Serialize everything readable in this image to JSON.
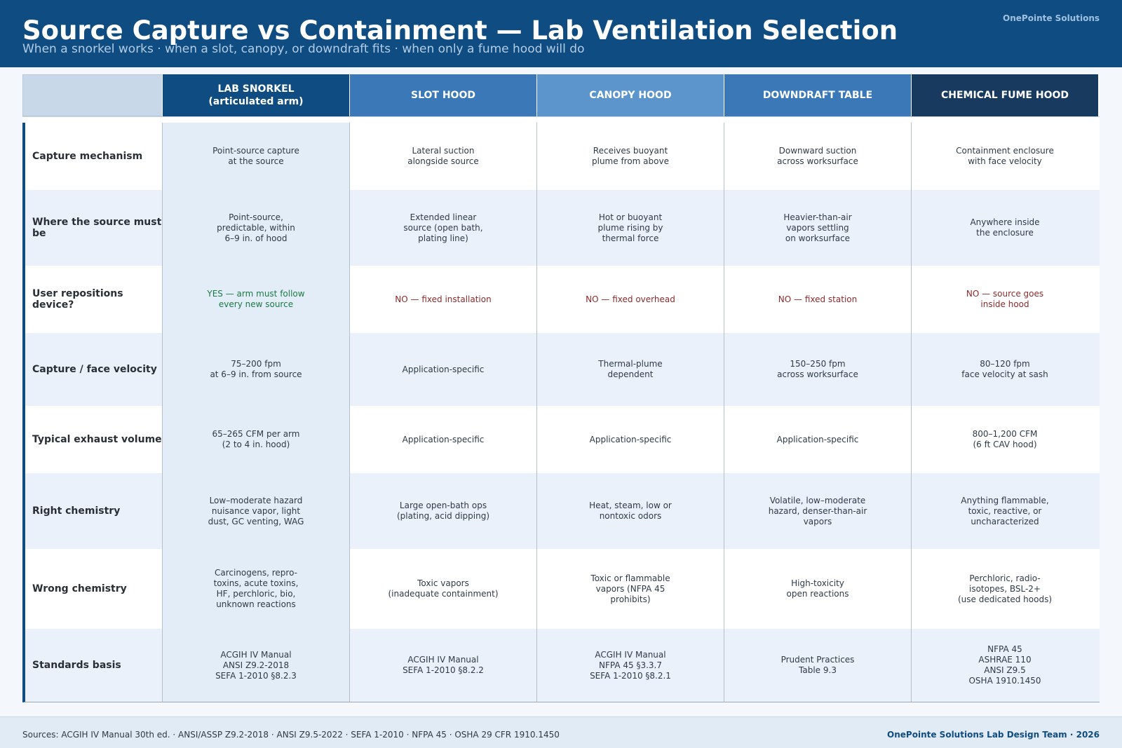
{
  "header": {
    "title": "Source Capture vs Containment — Lab Ventilation Selection",
    "subtitle": "When a snorkel works · when a slot, canopy, or downdraft fits · when only a fume hood will do",
    "brand": "OnePointe Solutions"
  },
  "columns": [
    {
      "label": "LAB SNORKEL\n(articulated arm)",
      "color": "#0f4c81"
    },
    {
      "label": "SLOT HOOD",
      "color": "#3a78b8"
    },
    {
      "label": "CANOPY HOOD",
      "color": "#5b95cc"
    },
    {
      "label": "DOWNDRAFT TABLE",
      "color": "#3a78b8"
    },
    {
      "label": "CHEMICAL FUME HOOD",
      "color": "#173a5e"
    }
  ],
  "rows": [
    {
      "label": "Capture mechanism",
      "cells": [
        {
          "text": "Point-source capture\nat the source"
        },
        {
          "text": "Lateral suction\nalongside source"
        },
        {
          "text": "Receives buoyant\nplume from above"
        },
        {
          "text": "Downward suction\nacross worksurface"
        },
        {
          "text": "Containment enclosure\nwith face velocity"
        }
      ]
    },
    {
      "label": "Where the source must be",
      "cells": [
        {
          "text": "Point-source,\npredictable, within\n6–9 in. of hood"
        },
        {
          "text": "Extended linear\nsource (open bath,\nplating line)"
        },
        {
          "text": "Hot or buoyant\nplume rising by\nthermal force"
        },
        {
          "text": "Heavier-than-air\nvapors settling\non worksurface"
        },
        {
          "text": "Anywhere inside\nthe enclosure"
        }
      ]
    },
    {
      "label": "User repositions device?",
      "cells": [
        {
          "text": "YES — arm must follow\nevery new source",
          "tone": "yes"
        },
        {
          "text": "NO — fixed installation",
          "tone": "no"
        },
        {
          "text": "NO — fixed overhead",
          "tone": "no"
        },
        {
          "text": "NO — fixed station",
          "tone": "no"
        },
        {
          "text": "NO — source goes\ninside hood",
          "tone": "no"
        }
      ]
    },
    {
      "label": "Capture / face velocity",
      "cells": [
        {
          "text": "75–200 fpm\nat 6–9 in. from source"
        },
        {
          "text": "Application-specific"
        },
        {
          "text": "Thermal-plume\ndependent"
        },
        {
          "text": "150–250 fpm\nacross worksurface"
        },
        {
          "text": "80–120 fpm\nface velocity at sash"
        }
      ]
    },
    {
      "label": "Typical exhaust volume",
      "cells": [
        {
          "text": "65–265 CFM per arm\n(2 to 4 in. hood)"
        },
        {
          "text": "Application-specific"
        },
        {
          "text": "Application-specific"
        },
        {
          "text": "Application-specific"
        },
        {
          "text": "800–1,200 CFM\n(6 ft CAV hood)"
        }
      ]
    },
    {
      "label": "Right chemistry",
      "cells": [
        {
          "text": "Low–moderate hazard\nnuisance vapor, light\ndust, GC venting, WAG"
        },
        {
          "text": "Large open-bath ops\n(plating, acid dipping)"
        },
        {
          "text": "Heat, steam, low or\nnontoxic odors"
        },
        {
          "text": "Volatile, low–moderate\nhazard, denser-than-air\nvapors"
        },
        {
          "text": "Anything flammable,\ntoxic, reactive, or\nuncharacterized"
        }
      ]
    },
    {
      "label": "Wrong chemistry",
      "cells": [
        {
          "text": "Carcinogens, repro-\ntoxins, acute toxins,\nHF, perchloric, bio,\nunknown reactions"
        },
        {
          "text": "Toxic vapors\n(inadequate containment)"
        },
        {
          "text": "Toxic or flammable\nvapors (NFPA 45\nprohibits)"
        },
        {
          "text": "High-toxicity\nopen reactions"
        },
        {
          "text": "Perchloric, radio-\nisotopes, BSL-2+\n(use dedicated hoods)"
        }
      ]
    },
    {
      "label": "Standards basis",
      "cells": [
        {
          "text": "ACGIH IV Manual\nANSI Z9.2-2018\nSEFA 1-2010 §8.2.3"
        },
        {
          "text": "ACGIH IV Manual\nSEFA 1-2010 §8.2.2"
        },
        {
          "text": "ACGIH IV Manual\nNFPA 45 §3.3.7\nSEFA 1-2010 §8.2.1"
        },
        {
          "text": "Prudent Practices\nTable 9.3"
        },
        {
          "text": "NFPA 45\nASHRAE 110\nANSI Z9.5\nOSHA 1910.1450"
        }
      ]
    }
  ],
  "footer": {
    "sources": "Sources: ACGIH IV Manual 30th ed. · ANSI/ASSP Z9.2-2018 · ANSI Z9.5-2022 · SEFA 1-2010 · NFPA 45 · OSHA 29 CFR 1910.1450",
    "credit": "OnePointe Solutions Lab Design Team · 2026"
  }
}
